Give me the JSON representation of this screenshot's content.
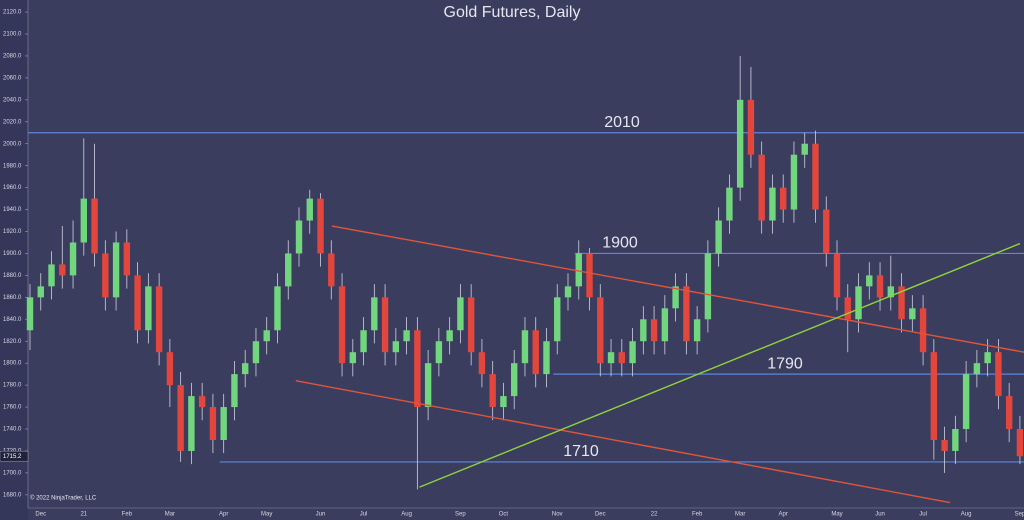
{
  "chart_data": {
    "type": "candlestick",
    "title": "Gold Futures, Daily",
    "watermark": "© 2022 NinjaTrader, LLC",
    "categories": [
      null,
      "Dec",
      null,
      null,
      null,
      "21",
      null,
      null,
      null,
      "Feb",
      null,
      null,
      null,
      "Mar",
      null,
      null,
      null,
      null,
      "Apr",
      null,
      null,
      null,
      "May",
      null,
      null,
      null,
      null,
      "Jun",
      null,
      null,
      null,
      "Jul",
      null,
      null,
      null,
      "Aug",
      null,
      null,
      null,
      null,
      "Sep",
      null,
      null,
      null,
      "Oct",
      null,
      null,
      null,
      null,
      "Nov",
      null,
      null,
      null,
      "Dec",
      null,
      null,
      null,
      null,
      "22",
      null,
      null,
      null,
      "Feb",
      null,
      null,
      null,
      "Mar",
      null,
      null,
      null,
      "Apr",
      null,
      null,
      null,
      null,
      "May",
      null,
      null,
      null,
      "Jun",
      null,
      null,
      null,
      "Jul",
      null,
      null,
      null,
      "Aug",
      null,
      null,
      null,
      null,
      "Sep"
    ],
    "open": [
      1830,
      1860,
      1870,
      1890,
      1880,
      1910,
      1950,
      1900,
      1860,
      1910,
      1880,
      1830,
      1870,
      1810,
      1780,
      1720,
      1770,
      1760,
      1730,
      1760,
      1790,
      1800,
      1820,
      1830,
      1870,
      1900,
      1930,
      1950,
      1900,
      1870,
      1800,
      1810,
      1830,
      1860,
      1810,
      1820,
      1830,
      1760,
      1800,
      1820,
      1830,
      1860,
      1810,
      1790,
      1760,
      1770,
      1800,
      1830,
      1790,
      1820,
      1860,
      1870,
      1900,
      1860,
      1800,
      1810,
      1800,
      1820,
      1840,
      1820,
      1850,
      1870,
      1820,
      1840,
      1900,
      1930,
      1960,
      2040,
      1990,
      1930,
      1960,
      1940,
      1990,
      2000,
      1940,
      1900,
      1860,
      1840,
      1870,
      1880,
      1860,
      1870,
      1840,
      1850,
      1810,
      1730,
      1720,
      1740,
      1790,
      1800,
      1810,
      1770,
      1740
    ],
    "high": [
      1872,
      1882,
      1902,
      1925,
      1930,
      2005,
      2000,
      1912,
      1920,
      1922,
      1892,
      1882,
      1882,
      1822,
      1792,
      1782,
      1782,
      1772,
      1772,
      1802,
      1812,
      1832,
      1842,
      1882,
      1912,
      1942,
      1958,
      1955,
      1912,
      1882,
      1822,
      1842,
      1872,
      1872,
      1832,
      1842,
      1842,
      1812,
      1832,
      1842,
      1872,
      1872,
      1822,
      1802,
      1782,
      1812,
      1842,
      1842,
      1832,
      1872,
      1882,
      1912,
      1905,
      1872,
      1822,
      1822,
      1832,
      1852,
      1852,
      1862,
      1882,
      1882,
      1852,
      1912,
      1942,
      1972,
      2080,
      2070,
      2002,
      1972,
      1972,
      2002,
      2010,
      2012,
      1952,
      1912,
      1872,
      1882,
      1892,
      1892,
      1898,
      1882,
      1862,
      1862,
      1822,
      1742,
      1752,
      1802,
      1812,
      1822,
      1822,
      1782,
      1752
    ],
    "low": [
      1812,
      1848,
      1858,
      1868,
      1868,
      1898,
      1888,
      1848,
      1848,
      1868,
      1818,
      1818,
      1798,
      1760,
      1710,
      1708,
      1748,
      1718,
      1718,
      1748,
      1778,
      1788,
      1808,
      1818,
      1858,
      1888,
      1918,
      1888,
      1858,
      1788,
      1788,
      1798,
      1818,
      1798,
      1798,
      1808,
      1685,
      1748,
      1788,
      1808,
      1818,
      1798,
      1778,
      1748,
      1748,
      1758,
      1788,
      1778,
      1778,
      1808,
      1848,
      1858,
      1848,
      1788,
      1788,
      1788,
      1788,
      1808,
      1808,
      1808,
      1838,
      1808,
      1808,
      1828,
      1888,
      1918,
      1948,
      1978,
      1918,
      1918,
      1928,
      1928,
      1978,
      1928,
      1888,
      1848,
      1810,
      1828,
      1858,
      1848,
      1848,
      1828,
      1828,
      1798,
      1712,
      1700,
      1708,
      1728,
      1778,
      1788,
      1758,
      1728,
      1708
    ],
    "close": [
      1860,
      1870,
      1890,
      1880,
      1910,
      1950,
      1900,
      1860,
      1910,
      1880,
      1830,
      1870,
      1810,
      1780,
      1720,
      1770,
      1760,
      1730,
      1760,
      1790,
      1800,
      1820,
      1830,
      1870,
      1900,
      1930,
      1950,
      1900,
      1870,
      1800,
      1810,
      1830,
      1860,
      1810,
      1820,
      1830,
      1760,
      1800,
      1820,
      1830,
      1860,
      1810,
      1790,
      1760,
      1770,
      1800,
      1830,
      1790,
      1820,
      1860,
      1870,
      1900,
      1860,
      1800,
      1810,
      1800,
      1820,
      1840,
      1820,
      1850,
      1870,
      1820,
      1840,
      1900,
      1930,
      1960,
      2040,
      1990,
      1930,
      1960,
      1940,
      1990,
      2000,
      1940,
      1900,
      1860,
      1840,
      1870,
      1880,
      1860,
      1870,
      1840,
      1850,
      1810,
      1730,
      1720,
      1740,
      1790,
      1800,
      1810,
      1770,
      1740,
      1715.2
    ],
    "up_color": "#72d67e",
    "down_color": "#e2463c",
    "ylim": [
      1668,
      2131
    ],
    "yticks": [
      {
        "value": 1680,
        "label": "1680.0"
      },
      {
        "value": 1700,
        "label": "1700.0"
      },
      {
        "value": 1720,
        "label": "1720.0"
      },
      {
        "value": 1740,
        "label": "1740.0"
      },
      {
        "value": 1760,
        "label": "1760.0"
      },
      {
        "value": 1780,
        "label": "1780.0"
      },
      {
        "value": 1800,
        "label": "1800.0"
      },
      {
        "value": 1820,
        "label": "1820.0"
      },
      {
        "value": 1840,
        "label": "1840.0"
      },
      {
        "value": 1860,
        "label": "1860.0"
      },
      {
        "value": 1880,
        "label": "1880.0"
      },
      {
        "value": 1900,
        "label": "1900.0"
      },
      {
        "value": 1920,
        "label": "1920.0"
      },
      {
        "value": 1940,
        "label": "1940.0"
      },
      {
        "value": 1960,
        "label": "1960.0"
      },
      {
        "value": 1980,
        "label": "1980.0"
      },
      {
        "value": 2000,
        "label": "2000.0"
      },
      {
        "value": 2020,
        "label": "2020.0"
      },
      {
        "value": 2040,
        "label": "2040.0"
      },
      {
        "value": 2060,
        "label": "2060.0"
      },
      {
        "value": 2080,
        "label": "2080.0"
      },
      {
        "value": 2100,
        "label": "2100.0"
      },
      {
        "value": 2120,
        "label": "2120.0"
      }
    ],
    "levels": [
      2010,
      1900,
      1790,
      1710
    ],
    "level_color": "#5d86d8",
    "trendlines": [
      {
        "color": "#e0553a",
        "x": [
          28.07,
          92.4
        ],
        "y": [
          1925,
          1810
        ]
      },
      {
        "color": "#e0553a",
        "x": [
          24.7,
          85.5
        ],
        "y": [
          1784,
          1673
        ]
      },
      {
        "color": "#8fd43a",
        "x": [
          36.2,
          92
        ],
        "y": [
          1687,
          1909
        ]
      }
    ]
  }
}
